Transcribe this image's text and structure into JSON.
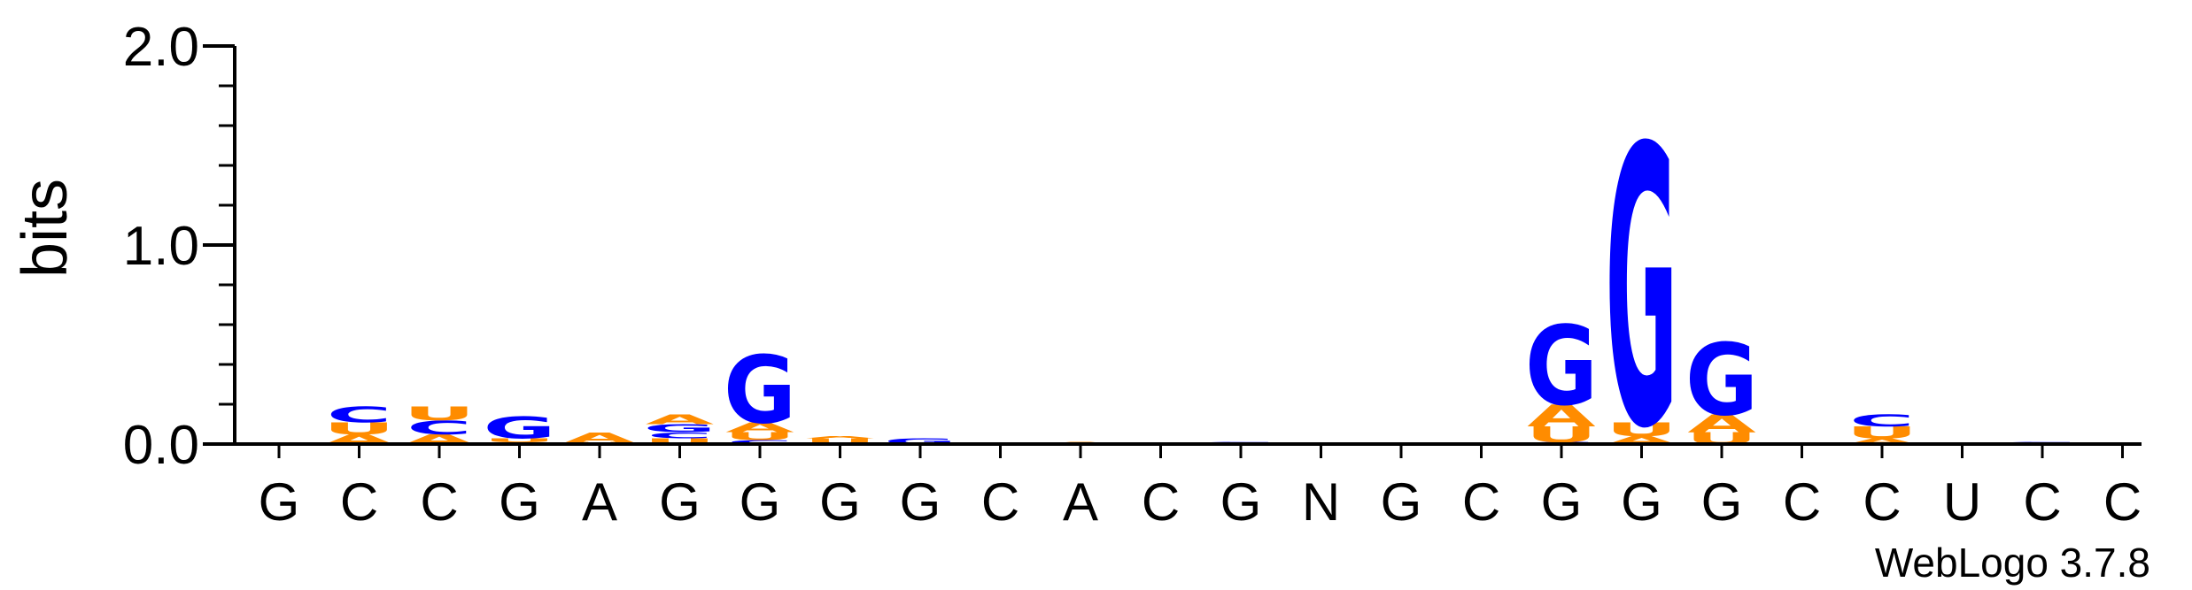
{
  "chart_data": {
    "type": "sequence-logo",
    "ylabel": "bits",
    "ylim": [
      0,
      2.0
    ],
    "yticks": [
      "0.0",
      "1.0",
      "2.0"
    ],
    "consensus": [
      "G",
      "C",
      "C",
      "G",
      "A",
      "G",
      "G",
      "G",
      "G",
      "C",
      "A",
      "C",
      "G",
      "N",
      "G",
      "C",
      "G",
      "G",
      "G",
      "C",
      "C",
      "U",
      "C",
      "C"
    ],
    "colors": {
      "G": "#0000ff",
      "C": "#0000ff",
      "A": "#ff8c00",
      "U": "#ff8c00"
    },
    "positions": [
      {
        "position": 1,
        "stack": []
      },
      {
        "position": 2,
        "stack": [
          {
            "letter": "A",
            "bits": 0.05
          },
          {
            "letter": "U",
            "bits": 0.06
          },
          {
            "letter": "C",
            "bits": 0.08
          }
        ]
      },
      {
        "position": 3,
        "stack": [
          {
            "letter": "A",
            "bits": 0.05
          },
          {
            "letter": "C",
            "bits": 0.07
          },
          {
            "letter": "U",
            "bits": 0.07
          }
        ]
      },
      {
        "position": 4,
        "stack": [
          {
            "letter": "A",
            "bits": 0.01
          },
          {
            "letter": "U",
            "bits": 0.02
          },
          {
            "letter": "G",
            "bits": 0.11
          }
        ]
      },
      {
        "position": 5,
        "stack": [
          {
            "letter": "U",
            "bits": 0.01
          },
          {
            "letter": "A",
            "bits": 0.05
          }
        ]
      },
      {
        "position": 6,
        "stack": [
          {
            "letter": "U",
            "bits": 0.03
          },
          {
            "letter": "C",
            "bits": 0.03
          },
          {
            "letter": "G",
            "bits": 0.04
          },
          {
            "letter": "A",
            "bits": 0.05
          }
        ]
      },
      {
        "position": 7,
        "stack": [
          {
            "letter": "C",
            "bits": 0.02
          },
          {
            "letter": "U",
            "bits": 0.04
          },
          {
            "letter": "A",
            "bits": 0.05
          },
          {
            "letter": "G",
            "bits": 0.34
          }
        ]
      },
      {
        "position": 8,
        "stack": [
          {
            "letter": "U",
            "bits": 0.03
          },
          {
            "letter": "A",
            "bits": 0.01
          }
        ]
      },
      {
        "position": 9,
        "stack": [
          {
            "letter": "G",
            "bits": 0.03
          }
        ]
      },
      {
        "position": 10,
        "stack": []
      },
      {
        "position": 11,
        "stack": [
          {
            "letter": "A",
            "bits": 0.01
          }
        ]
      },
      {
        "position": 12,
        "stack": []
      },
      {
        "position": 13,
        "stack": [
          {
            "letter": "A",
            "bits": 0.005
          },
          {
            "letter": "G",
            "bits": 0.005
          }
        ]
      },
      {
        "position": 14,
        "stack": []
      },
      {
        "position": 15,
        "stack": [
          {
            "letter": "G",
            "bits": 0.005
          }
        ]
      },
      {
        "position": 16,
        "stack": []
      },
      {
        "position": 17,
        "stack": [
          {
            "letter": "C",
            "bits": 0.01
          },
          {
            "letter": "U",
            "bits": 0.08
          },
          {
            "letter": "A",
            "bits": 0.11
          },
          {
            "letter": "G",
            "bits": 0.4
          }
        ]
      },
      {
        "position": 18,
        "stack": [
          {
            "letter": "A",
            "bits": 0.04
          },
          {
            "letter": "U",
            "bits": 0.07
          },
          {
            "letter": "G",
            "bits": 1.4
          }
        ]
      },
      {
        "position": 19,
        "stack": [
          {
            "letter": "U",
            "bits": 0.06
          },
          {
            "letter": "A",
            "bits": 0.09
          },
          {
            "letter": "G",
            "bits": 0.36
          }
        ]
      },
      {
        "position": 20,
        "stack": []
      },
      {
        "position": 21,
        "stack": [
          {
            "letter": "A",
            "bits": 0.03
          },
          {
            "letter": "U",
            "bits": 0.06
          },
          {
            "letter": "C",
            "bits": 0.06
          }
        ]
      },
      {
        "position": 22,
        "stack": []
      },
      {
        "position": 23,
        "stack": [
          {
            "letter": "A",
            "bits": 0.005
          },
          {
            "letter": "G",
            "bits": 0.005
          }
        ]
      },
      {
        "position": 24,
        "stack": []
      }
    ]
  },
  "footer": {
    "credit": "WebLogo 3.7.8"
  }
}
